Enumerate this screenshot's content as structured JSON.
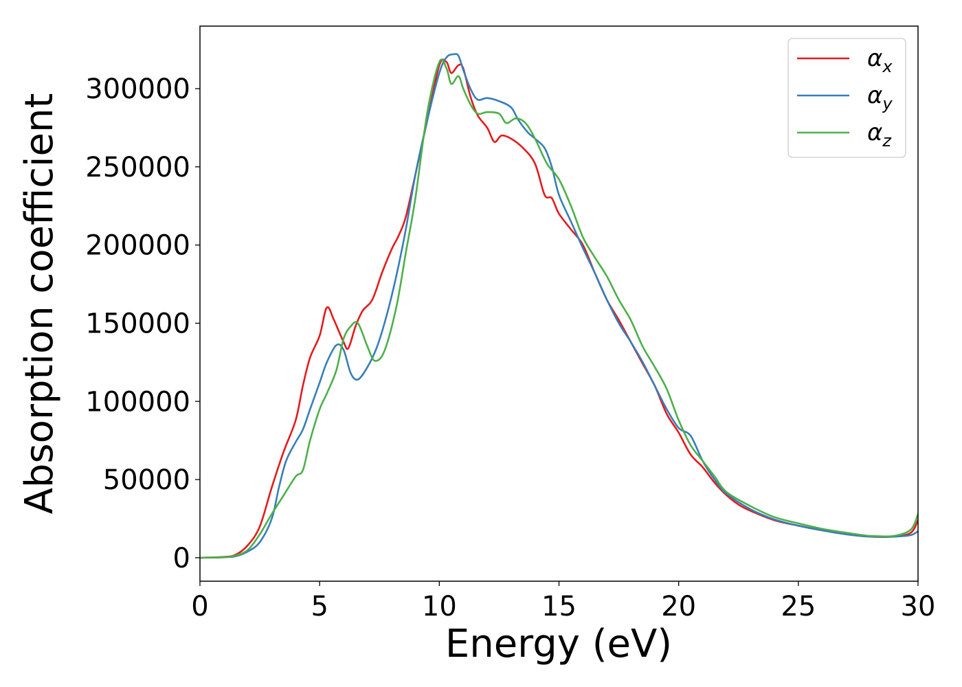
{
  "chart_data": {
    "type": "line",
    "title": "",
    "xlabel": "Energy (eV)",
    "ylabel": "Absorption coefficient",
    "xlim": [
      0,
      30
    ],
    "ylim": [
      -15000,
      340000
    ],
    "x_ticks": [
      0,
      5,
      10,
      15,
      20,
      25,
      30
    ],
    "y_ticks": [
      0,
      50000,
      100000,
      150000,
      200000,
      250000,
      300000
    ],
    "x_tick_labels": [
      "0",
      "5",
      "10",
      "15",
      "20",
      "25",
      "30"
    ],
    "y_tick_labels": [
      "0",
      "50000",
      "100000",
      "150000",
      "200000",
      "250000",
      "300000"
    ],
    "grid": false,
    "legend_position": "top-right",
    "series": [
      {
        "name": "α",
        "subscript": "x",
        "color": "#e41a1c",
        "points": [
          [
            0,
            0
          ],
          [
            1,
            500
          ],
          [
            1.5,
            2000
          ],
          [
            2,
            8000
          ],
          [
            2.5,
            20000
          ],
          [
            3,
            45000
          ],
          [
            3.5,
            68000
          ],
          [
            4,
            88000
          ],
          [
            4.3,
            110000
          ],
          [
            4.6,
            128000
          ],
          [
            5,
            142000
          ],
          [
            5.3,
            160000
          ],
          [
            5.6,
            152000
          ],
          [
            6,
            138000
          ],
          [
            6.2,
            134000
          ],
          [
            6.5,
            148000
          ],
          [
            6.8,
            158000
          ],
          [
            7.2,
            165000
          ],
          [
            7.6,
            182000
          ],
          [
            8,
            197000
          ],
          [
            8.3,
            206000
          ],
          [
            8.6,
            218000
          ],
          [
            9,
            245000
          ],
          [
            9.5,
            280000
          ],
          [
            10,
            315000
          ],
          [
            10.3,
            317000
          ],
          [
            10.5,
            310000
          ],
          [
            10.8,
            315000
          ],
          [
            11,
            313000
          ],
          [
            11.3,
            295000
          ],
          [
            11.6,
            283000
          ],
          [
            12,
            275000
          ],
          [
            12.3,
            266000
          ],
          [
            12.6,
            270000
          ],
          [
            13,
            268000
          ],
          [
            13.5,
            262000
          ],
          [
            14,
            252000
          ],
          [
            14.4,
            232000
          ],
          [
            14.7,
            230000
          ],
          [
            15,
            220000
          ],
          [
            15.5,
            210000
          ],
          [
            16,
            200000
          ],
          [
            16.5,
            182000
          ],
          [
            17,
            165000
          ],
          [
            17.5,
            152000
          ],
          [
            18,
            138000
          ],
          [
            18.5,
            124000
          ],
          [
            19,
            110000
          ],
          [
            19.5,
            92000
          ],
          [
            20,
            80000
          ],
          [
            20.5,
            66000
          ],
          [
            21,
            58000
          ],
          [
            21.5,
            48000
          ],
          [
            22,
            40000
          ],
          [
            22.5,
            34000
          ],
          [
            23,
            30000
          ],
          [
            24,
            24000
          ],
          [
            25,
            20500
          ],
          [
            26,
            17500
          ],
          [
            27,
            15000
          ],
          [
            28,
            13500
          ],
          [
            29,
            13500
          ],
          [
            29.7,
            16000
          ],
          [
            30,
            24000
          ]
        ]
      },
      {
        "name": "α",
        "subscript": "y",
        "color": "#377eb8",
        "points": [
          [
            0,
            0
          ],
          [
            1,
            300
          ],
          [
            1.5,
            1000
          ],
          [
            2,
            4000
          ],
          [
            2.5,
            10000
          ],
          [
            3,
            25000
          ],
          [
            3.3,
            45000
          ],
          [
            3.6,
            62000
          ],
          [
            4,
            74000
          ],
          [
            4.3,
            82000
          ],
          [
            4.6,
            95000
          ],
          [
            5,
            112000
          ],
          [
            5.3,
            125000
          ],
          [
            5.7,
            136000
          ],
          [
            6,
            133000
          ],
          [
            6.3,
            118000
          ],
          [
            6.6,
            114000
          ],
          [
            7,
            122000
          ],
          [
            7.4,
            135000
          ],
          [
            7.8,
            155000
          ],
          [
            8.2,
            180000
          ],
          [
            8.6,
            210000
          ],
          [
            9,
            245000
          ],
          [
            9.5,
            280000
          ],
          [
            10,
            310000
          ],
          [
            10.3,
            320000
          ],
          [
            10.6,
            322000
          ],
          [
            10.8,
            321000
          ],
          [
            11,
            312000
          ],
          [
            11.3,
            300000
          ],
          [
            11.6,
            293000
          ],
          [
            12,
            294000
          ],
          [
            12.5,
            292000
          ],
          [
            13,
            288000
          ],
          [
            13.3,
            280000
          ],
          [
            13.7,
            272000
          ],
          [
            14,
            268000
          ],
          [
            14.4,
            262000
          ],
          [
            14.7,
            250000
          ],
          [
            15,
            232000
          ],
          [
            15.5,
            215000
          ],
          [
            16,
            198000
          ],
          [
            16.5,
            182000
          ],
          [
            17,
            165000
          ],
          [
            17.5,
            150000
          ],
          [
            18,
            138000
          ],
          [
            18.5,
            125000
          ],
          [
            19,
            110000
          ],
          [
            19.5,
            95000
          ],
          [
            20,
            83000
          ],
          [
            20.5,
            78000
          ],
          [
            21,
            62000
          ],
          [
            21.5,
            50000
          ],
          [
            22,
            41000
          ],
          [
            23,
            31000
          ],
          [
            24,
            24500
          ],
          [
            25,
            20500
          ],
          [
            26,
            17500
          ],
          [
            27,
            15000
          ],
          [
            28,
            13500
          ],
          [
            29,
            13500
          ],
          [
            29.7,
            14500
          ],
          [
            30,
            17000
          ]
        ]
      },
      {
        "name": "α",
        "subscript": "z",
        "color": "#4daf4a",
        "points": [
          [
            0,
            0
          ],
          [
            1,
            300
          ],
          [
            1.5,
            1500
          ],
          [
            2,
            5000
          ],
          [
            2.5,
            15000
          ],
          [
            3,
            28000
          ],
          [
            3.5,
            40000
          ],
          [
            4,
            52000
          ],
          [
            4.3,
            56000
          ],
          [
            4.6,
            75000
          ],
          [
            5,
            95000
          ],
          [
            5.3,
            105000
          ],
          [
            5.7,
            120000
          ],
          [
            6,
            140000
          ],
          [
            6.3,
            148000
          ],
          [
            6.6,
            150000
          ],
          [
            7,
            135000
          ],
          [
            7.3,
            126000
          ],
          [
            7.7,
            132000
          ],
          [
            8.2,
            160000
          ],
          [
            8.6,
            195000
          ],
          [
            9,
            230000
          ],
          [
            9.5,
            285000
          ],
          [
            10,
            317000
          ],
          [
            10.3,
            313000
          ],
          [
            10.5,
            303000
          ],
          [
            10.8,
            308000
          ],
          [
            11,
            300000
          ],
          [
            11.3,
            290000
          ],
          [
            11.6,
            284000
          ],
          [
            12,
            285000
          ],
          [
            12.5,
            284000
          ],
          [
            12.8,
            278000
          ],
          [
            13.2,
            281000
          ],
          [
            13.6,
            278000
          ],
          [
            14,
            268000
          ],
          [
            14.5,
            252000
          ],
          [
            15,
            242000
          ],
          [
            15.5,
            225000
          ],
          [
            16,
            205000
          ],
          [
            16.5,
            192000
          ],
          [
            17,
            180000
          ],
          [
            17.5,
            165000
          ],
          [
            18,
            152000
          ],
          [
            18.5,
            135000
          ],
          [
            19,
            122000
          ],
          [
            19.5,
            108000
          ],
          [
            20,
            88000
          ],
          [
            20.5,
            72000
          ],
          [
            21,
            62000
          ],
          [
            21.5,
            52000
          ],
          [
            22,
            42000
          ],
          [
            23,
            33000
          ],
          [
            24,
            26000
          ],
          [
            25,
            22000
          ],
          [
            26,
            18500
          ],
          [
            27,
            16000
          ],
          [
            28,
            14000
          ],
          [
            29,
            14000
          ],
          [
            29.7,
            18000
          ],
          [
            30,
            28000
          ]
        ]
      }
    ]
  }
}
